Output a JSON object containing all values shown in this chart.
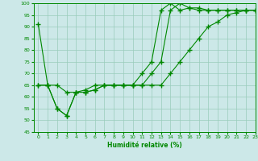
{
  "xlabel": "Humidité relative (%)",
  "ylabel": "",
  "xlim": [
    -0.5,
    23
  ],
  "ylim": [
    45,
    100
  ],
  "yticks": [
    45,
    50,
    55,
    60,
    65,
    70,
    75,
    80,
    85,
    90,
    95,
    100
  ],
  "xticks": [
    0,
    1,
    2,
    3,
    4,
    5,
    6,
    7,
    8,
    9,
    10,
    11,
    12,
    13,
    14,
    15,
    16,
    17,
    18,
    19,
    20,
    21,
    22,
    23
  ],
  "background_color": "#cce8e8",
  "grid_color": "#99ccbb",
  "line_color": "#008800",
  "line1_x": [
    0,
    1,
    2,
    3,
    4,
    5,
    6,
    7,
    8,
    9,
    10,
    11,
    12,
    13,
    14,
    15,
    16,
    17,
    18,
    19,
    20,
    21,
    22,
    23
  ],
  "line1_y": [
    65,
    65,
    65,
    62,
    62,
    63,
    65,
    65,
    65,
    65,
    65,
    65,
    70,
    75,
    97,
    100,
    98,
    98,
    97,
    97,
    97,
    97,
    97,
    97
  ],
  "line2_x": [
    0,
    1,
    2,
    3,
    4,
    5,
    6,
    7,
    8,
    9,
    10,
    11,
    12,
    13,
    14,
    15,
    16,
    17,
    18,
    19,
    20,
    21,
    22,
    23
  ],
  "line2_y": [
    65,
    65,
    55,
    52,
    62,
    62,
    63,
    65,
    65,
    65,
    65,
    70,
    75,
    97,
    100,
    97,
    98,
    97,
    97,
    97,
    97,
    97,
    97,
    97
  ],
  "line3_x": [
    0,
    1,
    2,
    3,
    4,
    5,
    6,
    7,
    8,
    9,
    10,
    11,
    12,
    13,
    14,
    15,
    16,
    17,
    18,
    19,
    20,
    21,
    22,
    23
  ],
  "line3_y": [
    91,
    65,
    55,
    52,
    62,
    62,
    63,
    65,
    65,
    65,
    65,
    65,
    65,
    65,
    70,
    75,
    80,
    85,
    90,
    92,
    95,
    96,
    97,
    97
  ],
  "markers": true,
  "marker_style": "+",
  "marker_size": 4
}
